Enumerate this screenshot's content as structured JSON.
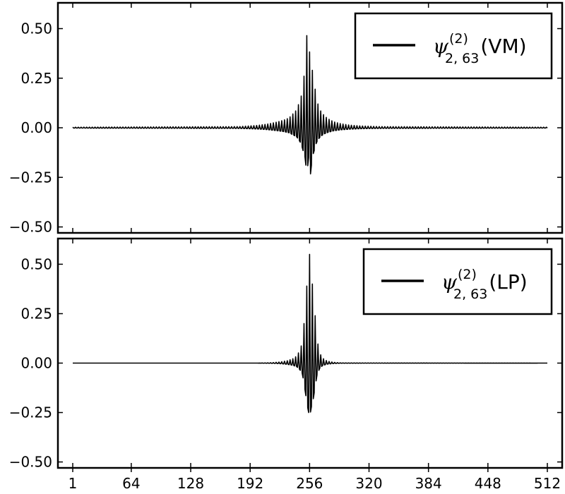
{
  "chart_data": [
    {
      "type": "line",
      "panel": "top",
      "xlim": [
        1,
        512
      ],
      "ylim": [
        -0.53,
        0.63
      ],
      "yticks": [
        0.5,
        0.25,
        0.0,
        -0.25,
        -0.5
      ],
      "ytick_labels": [
        "0.50",
        "0.25",
        "0.00",
        "−0.25",
        "−0.50"
      ],
      "legend": {
        "placement": "top-right",
        "symbol": "ψ",
        "sub": "2, 63",
        "sup": "(2)",
        "suffix": "(VM)"
      },
      "series": [
        {
          "name": "ψ2,63(2)(VM)",
          "color": "#000000",
          "x": [
            1,
            180,
            200,
            210,
            220,
            228,
            234,
            238,
            242,
            245,
            247,
            249,
            251,
            253,
            255,
            257,
            259,
            261,
            263,
            265,
            268,
            272,
            276,
            282,
            290,
            300,
            312,
            330,
            512
          ],
          "y": [
            0.003,
            0.006,
            0.012,
            0.018,
            0.028,
            0.038,
            0.05,
            0.07,
            0.09,
            0.13,
            0.16,
            0.23,
            0.29,
            0.465,
            0.3,
            0.465,
            0.29,
            0.23,
            0.16,
            0.12,
            0.085,
            0.06,
            0.045,
            0.03,
            0.02,
            0.013,
            0.009,
            0.006,
            0.003
          ],
          "oscillation_period": 3
        }
      ]
    },
    {
      "type": "line",
      "panel": "bottom",
      "xlim": [
        1,
        512
      ],
      "ylim": [
        -0.53,
        0.63
      ],
      "yticks": [
        0.5,
        0.25,
        0.0,
        -0.25,
        -0.5
      ],
      "ytick_labels": [
        "0.50",
        "0.25",
        "0.00",
        "−0.25",
        "−0.50"
      ],
      "xticks": [
        1,
        64,
        128,
        192,
        256,
        320,
        384,
        448,
        512
      ],
      "xtick_labels": [
        "1",
        "64",
        "128",
        "192",
        "256",
        "320",
        "384",
        "448",
        "512"
      ],
      "legend": {
        "placement": "top-right",
        "symbol": "ψ",
        "sub": "2, 63",
        "sup": "(2)",
        "suffix": "(LP)"
      },
      "series": [
        {
          "name": "ψ2,63(2)(LP)",
          "color": "#000000",
          "x": [
            1,
            200,
            215,
            225,
            232,
            238,
            242,
            245,
            248,
            250,
            252,
            254,
            256,
            258,
            260,
            262,
            264,
            267,
            270,
            275,
            282,
            290,
            512
          ],
          "y": [
            0.0,
            0.0,
            0.002,
            0.006,
            0.012,
            0.022,
            0.035,
            0.06,
            0.1,
            0.2,
            0.33,
            0.45,
            0.55,
            0.44,
            0.36,
            0.24,
            0.12,
            0.05,
            0.025,
            0.01,
            0.004,
            0.001,
            0.0
          ],
          "oscillation_period": 3
        }
      ]
    }
  ]
}
